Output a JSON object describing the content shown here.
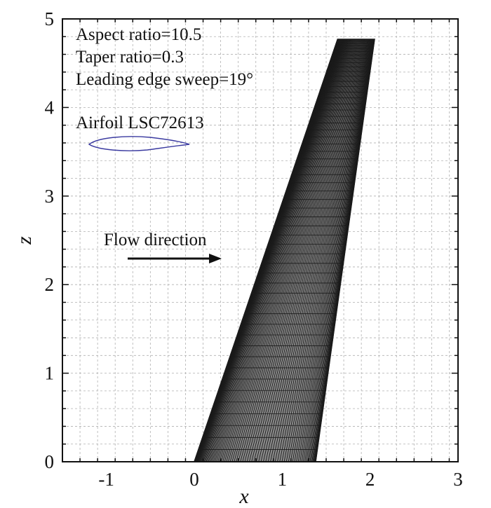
{
  "chart_data": {
    "type": "mesh",
    "xlabel": "x",
    "ylabel": "z",
    "xlim": [
      -1.5,
      3
    ],
    "ylim": [
      0,
      5
    ],
    "x_ticks": [
      -1,
      0,
      1,
      2,
      3
    ],
    "y_ticks": [
      0,
      1,
      2,
      3,
      4,
      5
    ],
    "grid": true,
    "wing_planform": {
      "root_leading_edge": [
        0,
        0
      ],
      "root_trailing_edge": [
        1.38,
        0
      ],
      "tip_leading_edge": [
        1.63,
        4.77
      ],
      "tip_trailing_edge": [
        2.05,
        4.77
      ]
    },
    "annotations": [
      "Aspect ratio=10.5",
      "Taper ratio=0.3",
      "Leading edge sweep=19°",
      "Airfoil LSC72613",
      "Flow direction"
    ],
    "colors": {
      "mesh": "#1a1a1a",
      "airfoil": "#3a3aa0",
      "grid": "#b0b0b0"
    }
  }
}
